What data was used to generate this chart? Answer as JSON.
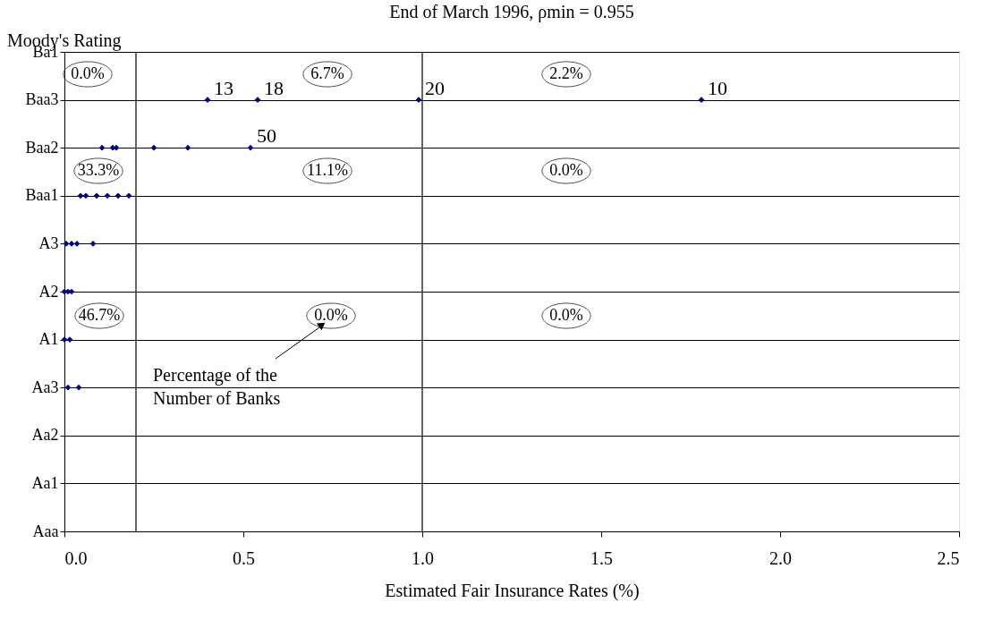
{
  "chart_data": {
    "type": "scatter",
    "title": "End of March 1996, ρmin = 0.955",
    "xlabel": "Estimated Fair Insurance Rates (%)",
    "ylabel": "Moody's Rating",
    "orientation": "horizontal",
    "categories": [
      "Ba1",
      "Baa3",
      "Baa2",
      "Baa1",
      "A3",
      "A2",
      "A1",
      "Aa3",
      "Aa2",
      "Aa1",
      "Aaa"
    ],
    "xlim": [
      0,
      2.5
    ],
    "xticks": [
      {
        "value": 0,
        "label": "0.0"
      },
      0.5,
      {
        "value": 1,
        "label": "1.0"
      },
      1.5,
      {
        "value": 2,
        "label": "2.0"
      },
      2.5
    ],
    "series": [
      {
        "color": "#000080",
        "values": [
          null,
          0.4,
          0.105,
          0.045,
          0.005,
          0.0,
          0.0,
          0.01,
          null,
          null,
          null
        ]
      },
      {
        "color": "#000080",
        "values": [
          null,
          0.54,
          0.135,
          0.06,
          0.02,
          0.01,
          0.015,
          0.04,
          null,
          null,
          null
        ]
      },
      {
        "color": "#000080",
        "values": [
          null,
          0.99,
          0.145,
          0.09,
          0.035,
          0.02,
          null,
          null,
          null,
          null,
          null
        ]
      },
      {
        "color": "#000080",
        "values": [
          null,
          1.78,
          0.25,
          0.12,
          0.08,
          null,
          null,
          null,
          null,
          null,
          null
        ]
      },
      {
        "color": "#000080",
        "values": [
          null,
          null,
          0.345,
          0.15,
          null,
          null,
          null,
          null,
          null,
          null,
          null
        ]
      },
      {
        "color": "#000080",
        "values": [
          null,
          null,
          0.52,
          0.18,
          null,
          null,
          null,
          null,
          null,
          null,
          null
        ]
      }
    ],
    "marker": "diamond",
    "grid": "y",
    "ref_lines": [
      {
        "axis": "x",
        "value": 0.2,
        "color": "#000000"
      },
      {
        "axis": "x",
        "value": 1.0,
        "color": "#000000"
      }
    ],
    "annotations": [
      {
        "text": "13",
        "x": 0.4,
        "y": "Baa3"
      },
      {
        "text": "18",
        "x": 0.54,
        "y": "Baa3"
      },
      {
        "text": "20",
        "x": 0.99,
        "y": "Baa3"
      },
      {
        "text": "10",
        "x": 1.78,
        "y": "Baa3"
      },
      {
        "text": "50",
        "x": 0.52,
        "y": "Baa2"
      },
      "0.0%",
      "6.7%",
      "2.2%",
      "33.3%",
      "11.1%",
      "0.0%",
      "46.7%",
      "0.0%",
      "0.0%",
      "Percentage of the\nNumber of Banks"
    ]
  }
}
